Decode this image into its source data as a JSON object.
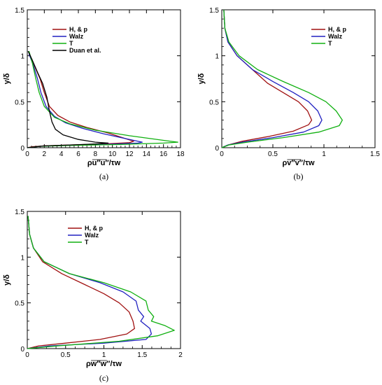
{
  "chart_data": [
    {
      "type": "line",
      "panel": "(a)",
      "xlabel": "ρu″u″/τw",
      "ylabel": "y/δ",
      "xlim": [
        0,
        18
      ],
      "ylim": [
        0,
        1.5
      ],
      "xticks": [
        "0",
        "2",
        "4",
        "6",
        "8",
        "10",
        "12",
        "14",
        "16",
        "18"
      ],
      "yticks": [
        "0",
        "0.5",
        "1",
        "1.5"
      ],
      "legend_position": "top-right",
      "series": [
        {
          "name": "H, & p",
          "color": "#a01010",
          "points": [
            [
              0.2,
              1.02
            ],
            [
              0.8,
              0.9
            ],
            [
              1.5,
              0.75
            ],
            [
              2.0,
              0.6
            ],
            [
              2.6,
              0.45
            ],
            [
              3.6,
              0.35
            ],
            [
              5.0,
              0.28
            ],
            [
              7.0,
              0.22
            ],
            [
              9.5,
              0.16
            ],
            [
              11.5,
              0.1
            ],
            [
              12.5,
              0.07
            ],
            [
              12.0,
              0.055
            ],
            [
              9.0,
              0.04
            ],
            [
              5.0,
              0.03
            ],
            [
              2.0,
              0.02
            ],
            [
              0.5,
              0.01
            ],
            [
              0,
              0
            ]
          ]
        },
        {
          "name": "Walz",
          "color": "#2020c0",
          "points": [
            [
              0.2,
              1.02
            ],
            [
              0.7,
              0.9
            ],
            [
              1.2,
              0.75
            ],
            [
              1.6,
              0.6
            ],
            [
              2.2,
              0.45
            ],
            [
              3.2,
              0.34
            ],
            [
              4.5,
              0.27
            ],
            [
              6.5,
              0.21
            ],
            [
              9.0,
              0.15
            ],
            [
              11.5,
              0.1
            ],
            [
              13.5,
              0.06
            ],
            [
              13.0,
              0.05
            ],
            [
              9.0,
              0.035
            ],
            [
              4.5,
              0.025
            ],
            [
              1.5,
              0.015
            ],
            [
              0,
              0
            ]
          ]
        },
        {
          "name": "T",
          "color": "#10b010",
          "points": [
            [
              0.2,
              1.05
            ],
            [
              0.6,
              0.92
            ],
            [
              1.0,
              0.75
            ],
            [
              1.4,
              0.6
            ],
            [
              2.0,
              0.45
            ],
            [
              3.2,
              0.33
            ],
            [
              5.0,
              0.26
            ],
            [
              8.0,
              0.19
            ],
            [
              12.0,
              0.13
            ],
            [
              16.0,
              0.08
            ],
            [
              17.7,
              0.06
            ],
            [
              16.0,
              0.05
            ],
            [
              11.0,
              0.035
            ],
            [
              5.0,
              0.025
            ],
            [
              1.5,
              0.015
            ],
            [
              0,
              0
            ]
          ]
        },
        {
          "name": "Duan et al.",
          "color": "#000000",
          "points": [
            [
              0.1,
              1.05
            ],
            [
              0.6,
              0.95
            ],
            [
              1.2,
              0.82
            ],
            [
              1.8,
              0.7
            ],
            [
              2.3,
              0.55
            ],
            [
              2.6,
              0.4
            ],
            [
              2.9,
              0.28
            ],
            [
              3.3,
              0.2
            ],
            [
              4.2,
              0.14
            ],
            [
              6.0,
              0.09
            ],
            [
              8.0,
              0.06
            ],
            [
              9.5,
              0.05
            ],
            [
              8.0,
              0.04
            ],
            [
              5.0,
              0.03
            ],
            [
              2.0,
              0.02
            ],
            [
              0,
              0
            ]
          ]
        }
      ],
      "caption": "(a)"
    },
    {
      "type": "line",
      "panel": "(b)",
      "xlabel": "ρv″v″/τw",
      "ylabel": "y/δ",
      "xlim": [
        0,
        1.5
      ],
      "ylim": [
        0,
        1.5
      ],
      "xticks": [
        "0",
        "0.5",
        "1",
        "1.5"
      ],
      "yticks": [
        "0",
        "0.5",
        "1",
        "1.5"
      ],
      "legend_position": "top-right",
      "series": [
        {
          "name": "H, & p",
          "color": "#a01010",
          "points": [
            [
              0.02,
              1.5
            ],
            [
              0.03,
              1.3
            ],
            [
              0.06,
              1.15
            ],
            [
              0.15,
              1.0
            ],
            [
              0.3,
              0.85
            ],
            [
              0.45,
              0.7
            ],
            [
              0.6,
              0.6
            ],
            [
              0.75,
              0.5
            ],
            [
              0.84,
              0.4
            ],
            [
              0.88,
              0.3
            ],
            [
              0.85,
              0.25
            ],
            [
              0.7,
              0.18
            ],
            [
              0.45,
              0.12
            ],
            [
              0.2,
              0.07
            ],
            [
              0.06,
              0.03
            ],
            [
              0,
              0
            ]
          ]
        },
        {
          "name": "Walz",
          "color": "#2020c0",
          "points": [
            [
              0.02,
              1.5
            ],
            [
              0.03,
              1.3
            ],
            [
              0.06,
              1.15
            ],
            [
              0.15,
              1.0
            ],
            [
              0.3,
              0.85
            ],
            [
              0.5,
              0.72
            ],
            [
              0.7,
              0.6
            ],
            [
              0.85,
              0.5
            ],
            [
              0.94,
              0.4
            ],
            [
              0.98,
              0.3
            ],
            [
              0.95,
              0.24
            ],
            [
              0.8,
              0.17
            ],
            [
              0.5,
              0.11
            ],
            [
              0.2,
              0.06
            ],
            [
              0.06,
              0.03
            ],
            [
              0,
              0
            ]
          ]
        },
        {
          "name": "T",
          "color": "#10b010",
          "points": [
            [
              0.02,
              1.5
            ],
            [
              0.03,
              1.3
            ],
            [
              0.07,
              1.15
            ],
            [
              0.17,
              1.0
            ],
            [
              0.35,
              0.85
            ],
            [
              0.6,
              0.72
            ],
            [
              0.85,
              0.6
            ],
            [
              1.02,
              0.5
            ],
            [
              1.12,
              0.4
            ],
            [
              1.18,
              0.3
            ],
            [
              1.15,
              0.24
            ],
            [
              0.95,
              0.17
            ],
            [
              0.6,
              0.11
            ],
            [
              0.25,
              0.06
            ],
            [
              0.07,
              0.03
            ],
            [
              0,
              0
            ]
          ]
        }
      ],
      "caption": "(b)"
    },
    {
      "type": "line",
      "panel": "(c)",
      "xlabel": "ρw″w″/τw",
      "ylabel": "y/δ",
      "xlim": [
        0,
        2
      ],
      "ylim": [
        0,
        1.5
      ],
      "xticks": [
        "0",
        "0.5",
        "1",
        "1.5",
        "2"
      ],
      "yticks": [
        "0",
        "0.5",
        "1",
        "1.5"
      ],
      "legend_position": "top-right",
      "series": [
        {
          "name": "H, & p",
          "color": "#a01010",
          "points": [
            [
              0.01,
              1.45
            ],
            [
              0.03,
              1.25
            ],
            [
              0.08,
              1.1
            ],
            [
              0.2,
              0.95
            ],
            [
              0.45,
              0.82
            ],
            [
              0.75,
              0.7
            ],
            [
              1.0,
              0.6
            ],
            [
              1.2,
              0.5
            ],
            [
              1.33,
              0.4
            ],
            [
              1.38,
              0.3
            ],
            [
              1.4,
              0.22
            ],
            [
              1.3,
              0.16
            ],
            [
              0.95,
              0.1
            ],
            [
              0.5,
              0.06
            ],
            [
              0.15,
              0.03
            ],
            [
              0,
              0
            ]
          ]
        },
        {
          "name": "Walz",
          "color": "#2020c0",
          "points": [
            [
              0.01,
              1.45
            ],
            [
              0.03,
              1.25
            ],
            [
              0.08,
              1.1
            ],
            [
              0.22,
              0.95
            ],
            [
              0.55,
              0.82
            ],
            [
              0.95,
              0.72
            ],
            [
              1.25,
              0.62
            ],
            [
              1.42,
              0.52
            ],
            [
              1.45,
              0.42
            ],
            [
              1.52,
              0.35
            ],
            [
              1.48,
              0.3
            ],
            [
              1.6,
              0.22
            ],
            [
              1.62,
              0.16
            ],
            [
              1.55,
              0.1
            ],
            [
              1.0,
              0.06
            ],
            [
              0.3,
              0.03
            ],
            [
              0,
              0
            ]
          ]
        },
        {
          "name": "T",
          "color": "#10b010",
          "points": [
            [
              0.01,
              1.45
            ],
            [
              0.03,
              1.25
            ],
            [
              0.08,
              1.1
            ],
            [
              0.22,
              0.95
            ],
            [
              0.55,
              0.82
            ],
            [
              1.0,
              0.72
            ],
            [
              1.35,
              0.62
            ],
            [
              1.55,
              0.52
            ],
            [
              1.58,
              0.42
            ],
            [
              1.65,
              0.35
            ],
            [
              1.62,
              0.3
            ],
            [
              1.8,
              0.25
            ],
            [
              1.92,
              0.2
            ],
            [
              1.7,
              0.14
            ],
            [
              1.2,
              0.08
            ],
            [
              0.4,
              0.03
            ],
            [
              0,
              0
            ]
          ]
        }
      ],
      "caption": "(c)"
    }
  ]
}
